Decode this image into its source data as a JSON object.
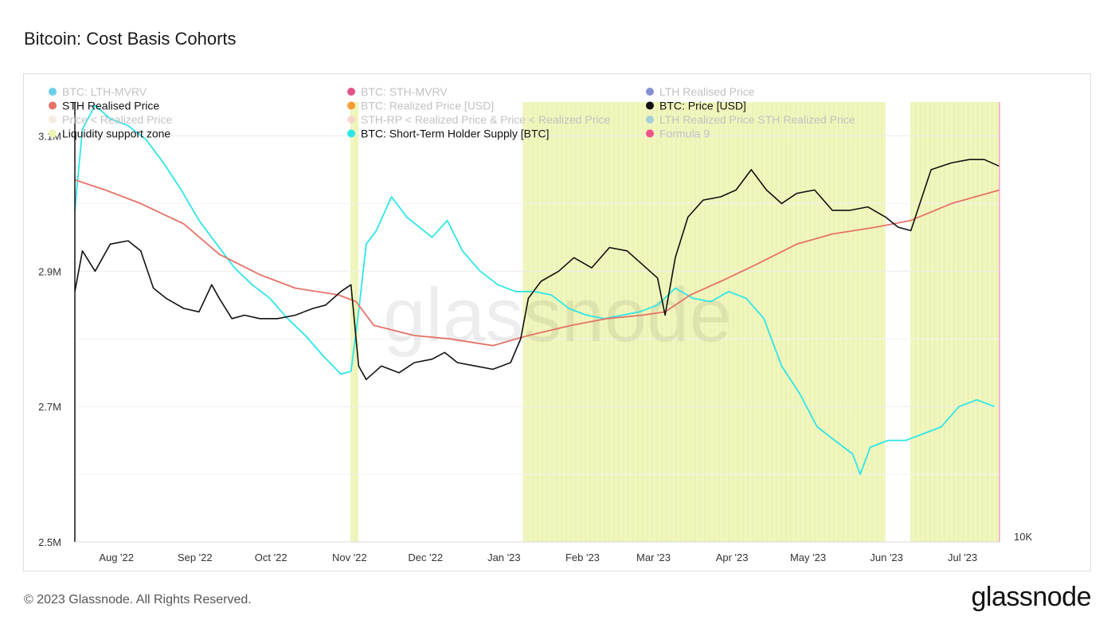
{
  "title": "Bitcoin: Cost Basis Cohorts",
  "footer": {
    "copyright": "© 2023 Glassnode. All Rights Reserved.",
    "brand": "glassnode"
  },
  "watermark": "glassnode",
  "chart_data": {
    "type": "line",
    "title": "Bitcoin: Cost Basis Cohorts",
    "y_left": {
      "ticks": [
        "3.1M",
        "2.9M",
        "2.7M",
        "2.5M"
      ],
      "range": [
        2500000,
        3150000
      ]
    },
    "y_right": {
      "ticks": [
        "10K"
      ]
    },
    "x_ticks": [
      "Aug '22",
      "Sep '22",
      "Oct '22",
      "Nov '22",
      "Dec '22",
      "Jan '23",
      "Feb '23",
      "Mar '23",
      "Apr '23",
      "May '23",
      "Jun '23",
      "Jul '23"
    ],
    "x_range": [
      "2022-07-20",
      "2023-07-20"
    ],
    "legend": [
      {
        "name": "BTC: LTH-MVRV",
        "color": "#3cbfe8",
        "active": false
      },
      {
        "name": "BTC: STH-MVRV",
        "color": "#d81b60",
        "active": false
      },
      {
        "name": "LTH Realised Price",
        "color": "#5c6bc0",
        "active": false
      },
      {
        "name": "STH Realised Price",
        "color": "#e57368",
        "active": true
      },
      {
        "name": "BTC: Realized Price [USD]",
        "color": "#f57c00",
        "active": false
      },
      {
        "name": "BTC: Price [USD]",
        "color": "#111111",
        "active": true
      },
      {
        "name": "Price < Realized Price",
        "color": "#f3e6d6",
        "active": false
      },
      {
        "name": "STH-RP < Realized Price & Price < Realized Price",
        "color": "#f6c9c9",
        "active": false
      },
      {
        "name": "LTH Realized Price STH Realized Price",
        "color": "#8fc3e6",
        "active": false
      },
      {
        "name": "Liquidity support zone",
        "color": "#eef5b5",
        "active": true
      },
      {
        "name": "BTC: Short-Term Holder Supply [BTC]",
        "color": "#2ee6e6",
        "active": true
      },
      {
        "name": "Formula 9",
        "color": "#e91e78",
        "active": false
      }
    ],
    "series": [
      {
        "name": "BTC: Short-Term Holder Supply [BTC]",
        "color": "#2ee6e6",
        "axis": "left",
        "x": [
          "2022-07-20",
          "2022-07-23",
          "2022-07-28",
          "2022-08-03",
          "2022-08-10",
          "2022-08-17",
          "2022-08-24",
          "2022-08-31",
          "2022-09-07",
          "2022-09-14",
          "2022-09-21",
          "2022-09-28",
          "2022-10-05",
          "2022-10-12",
          "2022-10-19",
          "2022-10-26",
          "2022-11-02",
          "2022-11-06",
          "2022-11-09",
          "2022-11-12",
          "2022-11-16",
          "2022-11-22",
          "2022-11-28",
          "2022-12-03",
          "2022-12-08",
          "2022-12-14",
          "2022-12-20",
          "2022-12-27",
          "2023-01-03",
          "2023-01-10",
          "2023-01-17",
          "2023-01-24",
          "2023-01-31",
          "2023-02-07",
          "2023-02-14",
          "2023-02-21",
          "2023-02-28",
          "2023-03-07",
          "2023-03-14",
          "2023-03-21",
          "2023-03-28",
          "2023-04-04",
          "2023-04-11",
          "2023-04-18",
          "2023-04-25",
          "2023-05-02",
          "2023-05-09",
          "2023-05-16",
          "2023-05-23",
          "2023-05-26",
          "2023-05-30",
          "2023-06-06",
          "2023-06-13",
          "2023-06-20",
          "2023-06-27",
          "2023-07-04",
          "2023-07-11",
          "2023-07-18"
        ],
        "values": [
          2990000,
          3110000,
          3145000,
          3125000,
          3115000,
          3095000,
          3060000,
          3020000,
          2975000,
          2940000,
          2905000,
          2880000,
          2860000,
          2830000,
          2805000,
          2775000,
          2748000,
          2752000,
          2840000,
          2940000,
          2960000,
          3010000,
          2980000,
          2965000,
          2950000,
          2975000,
          2930000,
          2900000,
          2880000,
          2870000,
          2870000,
          2865000,
          2845000,
          2835000,
          2830000,
          2835000,
          2840000,
          2850000,
          2875000,
          2860000,
          2855000,
          2870000,
          2860000,
          2830000,
          2760000,
          2720000,
          2670000,
          2650000,
          2630000,
          2600000,
          2640000,
          2650000,
          2650000,
          2660000,
          2670000,
          2700000,
          2710000,
          2700000
        ]
      },
      {
        "name": "STH Realised Price",
        "color": "#e57368",
        "axis": "left",
        "x": [
          "2022-07-20",
          "2022-08-01",
          "2022-08-15",
          "2022-09-01",
          "2022-09-15",
          "2022-10-01",
          "2022-10-15",
          "2022-11-01",
          "2022-11-08",
          "2022-11-15",
          "2022-12-01",
          "2022-12-15",
          "2023-01-01",
          "2023-01-15",
          "2023-02-01",
          "2023-02-15",
          "2023-03-01",
          "2023-03-10",
          "2023-03-20",
          "2023-04-01",
          "2023-04-15",
          "2023-05-01",
          "2023-05-15",
          "2023-06-01",
          "2023-06-15",
          "2023-07-01",
          "2023-07-20"
        ],
        "values": [
          3035000,
          3020000,
          3000000,
          2970000,
          2925000,
          2895000,
          2875000,
          2865000,
          2855000,
          2820000,
          2805000,
          2800000,
          2790000,
          2805000,
          2820000,
          2830000,
          2835000,
          2840000,
          2865000,
          2885000,
          2910000,
          2940000,
          2955000,
          2965000,
          2975000,
          3000000,
          3020000
        ]
      },
      {
        "name": "BTC: Price [USD]",
        "color": "#111111",
        "axis": "left",
        "x": [
          "2022-07-20",
          "2022-07-23",
          "2022-07-28",
          "2022-08-03",
          "2022-08-10",
          "2022-08-15",
          "2022-08-20",
          "2022-08-25",
          "2022-09-01",
          "2022-09-07",
          "2022-09-12",
          "2022-09-15",
          "2022-09-20",
          "2022-09-25",
          "2022-10-01",
          "2022-10-08",
          "2022-10-15",
          "2022-10-22",
          "2022-10-27",
          "2022-11-02",
          "2022-11-06",
          "2022-11-09",
          "2022-11-12",
          "2022-11-18",
          "2022-11-25",
          "2022-12-01",
          "2022-12-08",
          "2022-12-13",
          "2022-12-18",
          "2022-12-25",
          "2023-01-01",
          "2023-01-08",
          "2023-01-12",
          "2023-01-15",
          "2023-01-20",
          "2023-01-27",
          "2023-02-02",
          "2023-02-09",
          "2023-02-16",
          "2023-02-23",
          "2023-03-01",
          "2023-03-07",
          "2023-03-10",
          "2023-03-14",
          "2023-03-19",
          "2023-03-25",
          "2023-04-01",
          "2023-04-07",
          "2023-04-13",
          "2023-04-19",
          "2023-04-25",
          "2023-05-01",
          "2023-05-08",
          "2023-05-15",
          "2023-05-22",
          "2023-05-29",
          "2023-06-05",
          "2023-06-10",
          "2023-06-15",
          "2023-06-19",
          "2023-06-23",
          "2023-07-01",
          "2023-07-08",
          "2023-07-14",
          "2023-07-20"
        ],
        "values": [
          2870000,
          2930000,
          2900000,
          2940000,
          2945000,
          2930000,
          2875000,
          2860000,
          2845000,
          2840000,
          2880000,
          2860000,
          2830000,
          2835000,
          2830000,
          2830000,
          2835000,
          2845000,
          2850000,
          2870000,
          2880000,
          2760000,
          2740000,
          2760000,
          2750000,
          2765000,
          2770000,
          2780000,
          2765000,
          2760000,
          2755000,
          2765000,
          2800000,
          2860000,
          2885000,
          2900000,
          2920000,
          2905000,
          2935000,
          2930000,
          2910000,
          2890000,
          2835000,
          2920000,
          2980000,
          3005000,
          3010000,
          3020000,
          3050000,
          3020000,
          3000000,
          3015000,
          3020000,
          2990000,
          2990000,
          2995000,
          2980000,
          2965000,
          2960000,
          3005000,
          3050000,
          3060000,
          3065000,
          3065000,
          3055000
        ]
      }
    ],
    "shading": {
      "name": "Liquidity support zone",
      "color": "#eef5b5",
      "ranges": [
        [
          "2022-11-06",
          "2022-11-09"
        ],
        [
          "2023-01-13",
          "2023-06-05"
        ],
        [
          "2023-06-15",
          "2023-07-20"
        ]
      ]
    }
  }
}
